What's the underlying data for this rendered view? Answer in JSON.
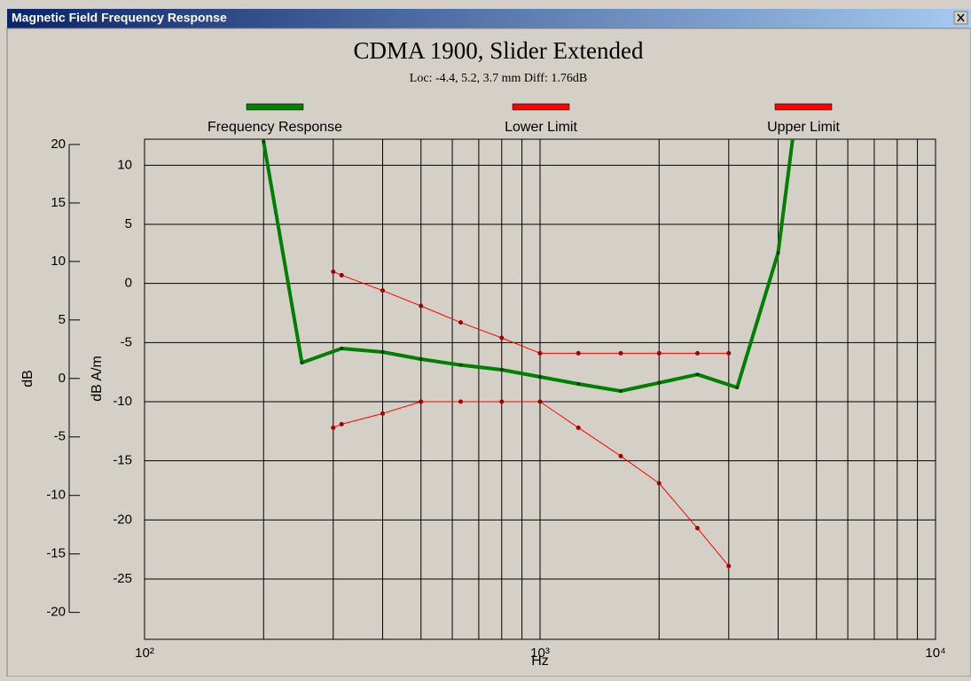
{
  "window": {
    "title": "Magnetic Field Frequency Response"
  },
  "chart_data": {
    "type": "line",
    "title": "CDMA 1900, Slider Extended",
    "subtitle": "Loc: -4.4, 5.2, 3.7 mm Diff: 1.76dB",
    "x_label": "Hz",
    "y_label": "dB A/m",
    "y2_label": "dB",
    "log_x": true,
    "grid": true,
    "legend": "top",
    "xlim": [
      100,
      10000
    ],
    "xticks": [
      {
        "value": 100,
        "label": "10²"
      },
      {
        "value": 1000,
        "label": "10³"
      },
      {
        "value": 10000,
        "label": "10⁴"
      }
    ],
    "xgrid_minor": [
      200,
      300,
      400,
      500,
      600,
      700,
      800,
      900,
      2000,
      3000,
      4000,
      5000,
      6000,
      7000,
      8000,
      9000
    ],
    "ylim": [
      -30.1,
      12.2
    ],
    "yticks": [
      -25,
      -20,
      -15,
      -10,
      -5,
      0,
      5,
      10
    ],
    "y2lim": [
      -22.3,
      20.45
    ],
    "y2ticks": [
      -20,
      -15,
      -10,
      -5,
      0,
      5,
      10,
      15,
      20
    ],
    "series": [
      {
        "name": "Frequency Response",
        "color": "#008000",
        "x": [
          200,
          250,
          315,
          400,
          500,
          630,
          800,
          1000,
          1250,
          1600,
          2000,
          2500,
          3150,
          4000,
          5000
        ],
        "values": [
          12,
          -6.7,
          -5.5,
          -5.8,
          -6.4,
          -6.9,
          -7.3,
          -7.9,
          -8.5,
          -9.1,
          -8.4,
          -7.7,
          -8.8,
          2.6,
          28
        ]
      },
      {
        "name": "Lower Limit",
        "color": "#ff0000",
        "x": [
          300,
          315,
          400,
          500,
          630,
          800,
          1000,
          1250,
          1600,
          2000,
          2500,
          3000
        ],
        "values": [
          -12.2,
          -11.9,
          -11.0,
          -10,
          -10,
          -10,
          -10,
          -12.2,
          -14.6,
          -16.9,
          -20.7,
          -23.9
        ]
      },
      {
        "name": "Upper Limit",
        "color": "#ff0000",
        "x": [
          300,
          315,
          400,
          500,
          630,
          800,
          1000,
          1250,
          1600,
          2000,
          2500,
          3000
        ],
        "values": [
          1.0,
          0.7,
          -0.6,
          -1.9,
          -3.3,
          -4.6,
          -5.9,
          -5.9,
          -5.9,
          -5.9,
          -5.9,
          -5.9
        ]
      }
    ]
  }
}
